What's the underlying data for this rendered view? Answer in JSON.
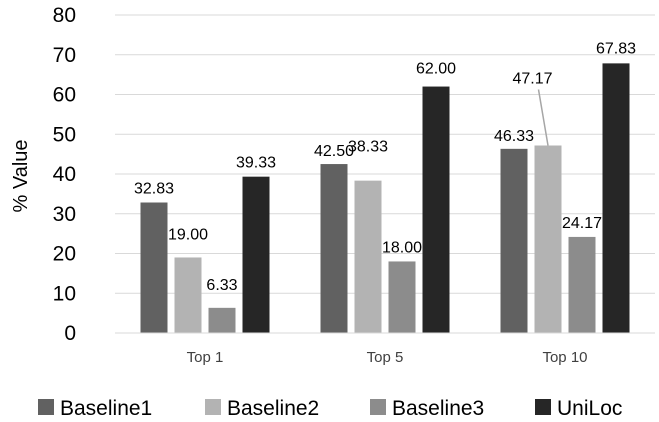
{
  "chart_data": {
    "type": "bar",
    "title": "",
    "xlabel": "",
    "ylabel": "% Value",
    "ylim": [
      0,
      80
    ],
    "yticks": [
      0,
      10,
      20,
      30,
      40,
      50,
      60,
      70,
      80
    ],
    "categories": [
      "Top 1",
      "Top 5",
      "Top 10"
    ],
    "series": [
      {
        "name": "Baseline1",
        "color": "#616161",
        "values": [
          32.83,
          42.5,
          46.33
        ],
        "labels": [
          "32.83",
          "42.50",
          "46.33"
        ]
      },
      {
        "name": "Baseline2",
        "color": "#b3b3b3",
        "values": [
          19.0,
          38.33,
          47.17
        ],
        "labels": [
          "19.00",
          "38.33",
          "47.17"
        ]
      },
      {
        "name": "Baseline3",
        "color": "#8c8c8c",
        "values": [
          6.33,
          18.0,
          24.17
        ],
        "labels": [
          "6.33",
          "18.00",
          "24.17"
        ]
      },
      {
        "name": "UniLoc",
        "color": "#262626",
        "values": [
          39.33,
          62.0,
          67.83
        ],
        "labels": [
          "39.33",
          "62.00",
          "67.83"
        ]
      }
    ],
    "grid": true,
    "legend_position": "bottom"
  }
}
